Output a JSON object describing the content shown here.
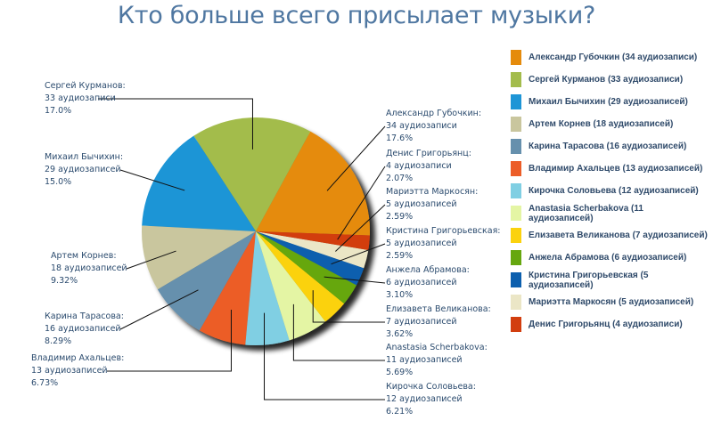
{
  "chart_data": {
    "type": "pie",
    "title": "Кто больше всего присылает музыки?",
    "legend_position": "right",
    "slices": [
      {
        "name": "Александр Губочкин",
        "value": 34,
        "value_label": "34 аудиозаписи",
        "percent": "17.6%",
        "legend": "Александр Губочкин (34 аудиозаписи)",
        "color": "#e58b0c"
      },
      {
        "name": "Сергей Курманов",
        "value": 33,
        "value_label": "33 аудиозаписи",
        "percent": "17.0%",
        "legend": "Сергей Курманов (33 аудиозаписи)",
        "color": "#a3bc4c"
      },
      {
        "name": "Михаил Бычихин",
        "value": 29,
        "value_label": "29 аудиозаписей",
        "percent": "15.0%",
        "legend": "Михаил Бычихин (29 аудиозаписей)",
        "color": "#1e95d6"
      },
      {
        "name": "Артем Корнев",
        "value": 18,
        "value_label": "18 аудиозаписей",
        "percent": "9.32%",
        "legend": "Артем Корнев (18 аудиозаписей)",
        "color": "#c9c69e"
      },
      {
        "name": "Карина Тарасова",
        "value": 16,
        "value_label": "16 аудиозаписей",
        "percent": "8.29%",
        "legend": "Карина Тарасова (16 аудиозаписей)",
        "color": "#6690ad"
      },
      {
        "name": "Владимир Ахальцев",
        "value": 13,
        "value_label": "13 аудиозаписей",
        "percent": "6.73%",
        "legend": "Владимир Ахальцев (13 аудиозаписей)",
        "color": "#ec5d28"
      },
      {
        "name": "Кирочка Соловьева",
        "value": 12,
        "value_label": "12 аудиозаписей",
        "percent": "6.21%",
        "legend": "Кирочка Соловьева (12 аудиозаписей)",
        "color": "#80cfe3"
      },
      {
        "name": "Anastasia Scherbakova",
        "value": 11,
        "value_label": "11 аудиозаписей",
        "percent": "5.69%",
        "legend": "Anastasia Scherbakova (11 аудиозаписей)",
        "color": "#e4f5a4"
      },
      {
        "name": "Елизавета Великанова",
        "value": 7,
        "value_label": "7 аудиозаписей",
        "percent": "3.62%",
        "legend": "Елизавета Великанова (7 аудиозаписей)",
        "color": "#fbd20e"
      },
      {
        "name": "Анжела Абрамова",
        "value": 6,
        "value_label": "6 аудиозаписей",
        "percent": "3.10%",
        "legend": "Анжела Абрамова (6 аудиозаписей)",
        "color": "#66a70f"
      },
      {
        "name": "Кристина Григорьевская",
        "value": 5,
        "value_label": "5 аудиозаписей",
        "percent": "2.59%",
        "legend": "Кристина Григорьевская (5 аудиозаписей)",
        "color": "#0c5fae"
      },
      {
        "name": "Мариэтта Маркосян",
        "value": 5,
        "value_label": "5 аудиозаписей",
        "percent": "2.59%",
        "legend": "Мариэтта Маркосян (5 аудиозаписей)",
        "color": "#ebe6c6"
      },
      {
        "name": "Денис Григорьянц",
        "value": 4,
        "value_label": "4 аудиозаписи",
        "percent": "2.07%",
        "legend": "Денис Григорьянц (4 аудиозаписи)",
        "color": "#d23e0f"
      }
    ]
  }
}
